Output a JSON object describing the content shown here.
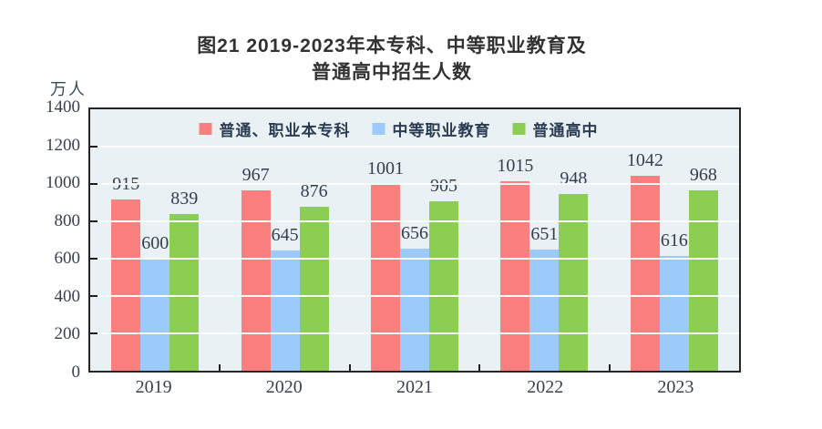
{
  "figure": {
    "title_line1": "图21  2019-2023年本专科、中等职业教育及",
    "title_line2": "普通高中招生人数",
    "unit_label": "万人"
  },
  "chart_data": {
    "type": "bar",
    "title": "图21 2019-2023年本专科、中等职业教育及普通高中招生人数",
    "xlabel": "",
    "ylabel": "万人",
    "ylim": [
      0,
      1400
    ],
    "y_ticks": [
      0,
      200,
      400,
      600,
      800,
      1000,
      1200,
      1400
    ],
    "grid": true,
    "legend_position": "top-inside",
    "categories": [
      "2019",
      "2020",
      "2021",
      "2022",
      "2023"
    ],
    "series": [
      {
        "name": "普通、职业本专科",
        "color": "#FA8080",
        "values": [
          915,
          967,
          1001,
          1015,
          1042
        ]
      },
      {
        "name": "中等职业教育",
        "color": "#9BCAFB",
        "values": [
          600,
          645,
          656,
          651,
          616
        ]
      },
      {
        "name": "普通高中",
        "color": "#8CCE52",
        "values": [
          839,
          876,
          905,
          948,
          968
        ]
      }
    ],
    "colors": {
      "plot_background": "#EAF1F4",
      "gridline": "#FAFCFC",
      "axis_border": "#262626",
      "value_label_text": "#333F50",
      "axis_label_text": "#39424E",
      "legend_text": "#2B3B52",
      "title_text": "#323232"
    }
  }
}
